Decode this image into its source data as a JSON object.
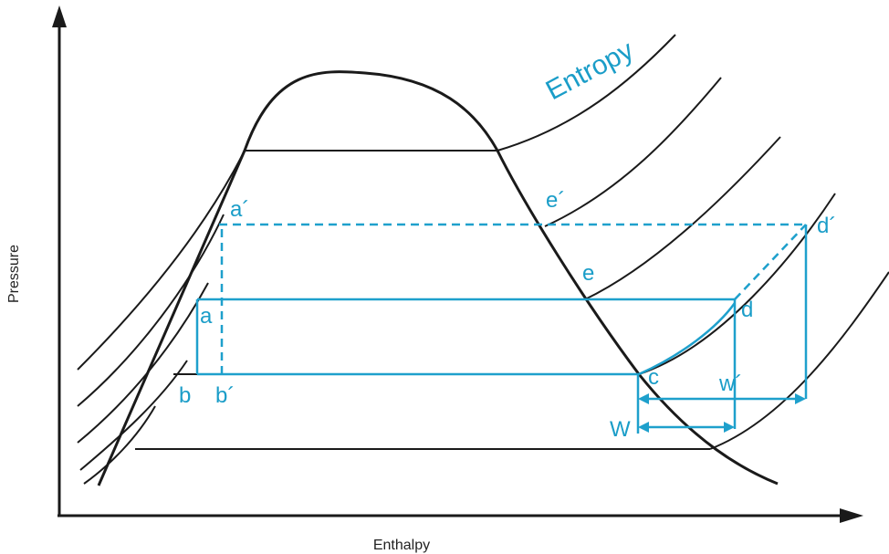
{
  "axes": {
    "x_label": "Enthalpy",
    "y_label": "Pressure"
  },
  "curve_labels": {
    "entropy": "Entropy"
  },
  "points": {
    "a_prime": "a´",
    "a": "a",
    "b": "b",
    "b_prime": "b´",
    "e_prime": "e´",
    "e": "e",
    "d_prime": "d´",
    "d": "d",
    "c": "c",
    "w_prime": "w´",
    "w": "W"
  },
  "colors": {
    "black": "#1a1a1a",
    "cycle_blue": "#1ea0cc",
    "label_blue": "#1a9dc8"
  }
}
